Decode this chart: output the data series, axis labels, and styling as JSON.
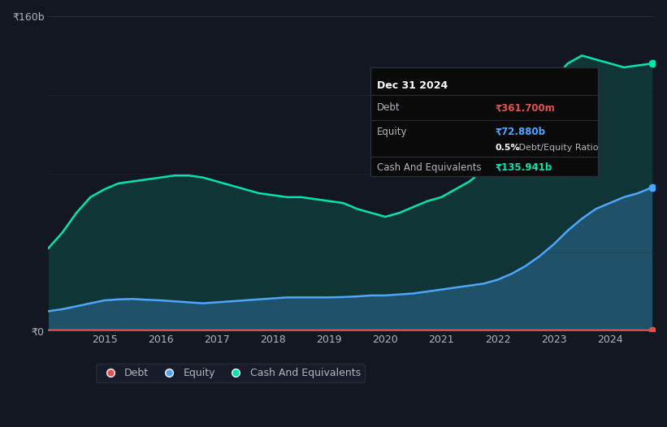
{
  "bg_color": "#131722",
  "plot_bg_color": "#131722",
  "grid_color": "#2a2e39",
  "text_color": "#b2b5be",
  "title_color": "#ffffff",
  "years": [
    2014.0,
    2014.25,
    2014.5,
    2014.75,
    2015.0,
    2015.25,
    2015.5,
    2015.75,
    2016.0,
    2016.25,
    2016.5,
    2016.75,
    2017.0,
    2017.25,
    2017.5,
    2017.75,
    2018.0,
    2018.25,
    2018.5,
    2018.75,
    2019.0,
    2019.25,
    2019.5,
    2019.75,
    2020.0,
    2020.25,
    2020.5,
    2020.75,
    2021.0,
    2021.25,
    2021.5,
    2021.75,
    2022.0,
    2022.25,
    2022.5,
    2022.75,
    2023.0,
    2023.25,
    2023.5,
    2023.75,
    2024.0,
    2024.25,
    2024.5,
    2024.75
  ],
  "debt": [
    0.4,
    0.4,
    0.4,
    0.4,
    0.4,
    0.38,
    0.36,
    0.35,
    0.35,
    0.35,
    0.35,
    0.35,
    0.35,
    0.35,
    0.35,
    0.35,
    0.35,
    0.35,
    0.35,
    0.35,
    0.36,
    0.36,
    0.36,
    0.36,
    0.36,
    0.36,
    0.36,
    0.36,
    0.36,
    0.36,
    0.36,
    0.36,
    0.36,
    0.36,
    0.36,
    0.36,
    0.36,
    0.36,
    0.36,
    0.36,
    0.36,
    0.36,
    0.36,
    0.36
  ],
  "equity": [
    10.0,
    11.0,
    12.5,
    14.0,
    15.5,
    16.0,
    16.2,
    15.8,
    15.5,
    15.0,
    14.5,
    14.0,
    14.5,
    15.0,
    15.5,
    16.0,
    16.5,
    17.0,
    17.0,
    17.0,
    17.0,
    17.2,
    17.5,
    18.0,
    18.0,
    18.5,
    19.0,
    20.0,
    21.0,
    22.0,
    23.0,
    24.0,
    26.0,
    29.0,
    33.0,
    38.0,
    44.0,
    51.0,
    57.0,
    62.0,
    65.0,
    68.0,
    70.0,
    72.88
  ],
  "cash": [
    42.0,
    50.0,
    60.0,
    68.0,
    72.0,
    75.0,
    76.0,
    77.0,
    78.0,
    79.0,
    79.0,
    78.0,
    76.0,
    74.0,
    72.0,
    70.0,
    69.0,
    68.0,
    68.0,
    67.0,
    66.0,
    65.0,
    62.0,
    60.0,
    58.0,
    60.0,
    63.0,
    66.0,
    68.0,
    72.0,
    76.0,
    82.0,
    90.0,
    100.0,
    110.0,
    120.0,
    128.0,
    136.0,
    140.0,
    138.0,
    136.0,
    134.0,
    135.0,
    135.941
  ],
  "ylim": [
    0,
    160
  ],
  "yticks": [
    0,
    160
  ],
  "ytick_labels": [
    "₹0",
    "₹160b"
  ],
  "xtick_years": [
    2015,
    2016,
    2017,
    2018,
    2019,
    2020,
    2021,
    2022,
    2023,
    2024
  ],
  "debt_color": "#e05252",
  "equity_color": "#4da6ff",
  "cash_color": "#00e5b0",
  "tooltip_date": "Dec 31 2024",
  "tooltip_debt_label": "Debt",
  "tooltip_debt_value": "₹361.700m",
  "tooltip_equity_label": "Equity",
  "tooltip_equity_value": "₹72.880b",
  "tooltip_ratio_bold": "0.5%",
  "tooltip_ratio_normal": " Debt/Equity Ratio",
  "tooltip_cash_label": "Cash And Equivalents",
  "tooltip_cash_value": "₹135.941b",
  "legend_debt_label": "Debt",
  "legend_equity_label": "Equity",
  "legend_cash_label": "Cash And Equivalents"
}
